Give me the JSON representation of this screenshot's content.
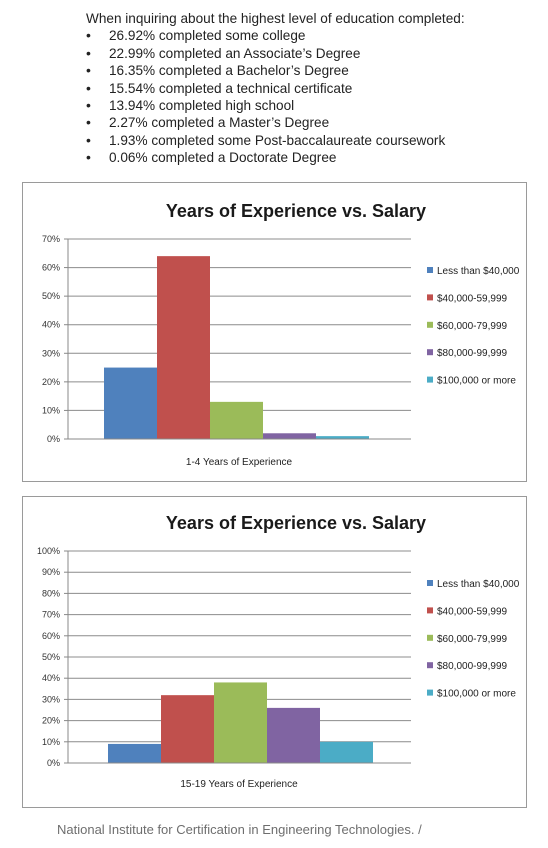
{
  "intro": {
    "heading": "When inquiring about the highest level of education completed:",
    "bullets": [
      "26.92% completed some college",
      "22.99% completed an Associate’s Degree",
      "16.35% completed a Bachelor’s Degree",
      "15.54% completed a technical certificate",
      "13.94% completed high school",
      "2.27% completed a Master’s Degree",
      "1.93% completed some Post-baccalaureate coursework",
      "0.06% completed a Doctorate Degree"
    ]
  },
  "chart_data": [
    {
      "type": "bar",
      "title": "Years of Experience vs. Salary",
      "categories": [
        "1-4  Years of Experience"
      ],
      "series": [
        {
          "name": "Less than $40,000",
          "color": "#4f81bd",
          "values": [
            25
          ]
        },
        {
          "name": "$40,000-59,999",
          "color": "#c0504d",
          "values": [
            64
          ]
        },
        {
          "name": "$60,000-79,999",
          "color": "#9bbb59",
          "values": [
            13
          ]
        },
        {
          "name": "$80,000-99,999",
          "color": "#8064a2",
          "values": [
            2
          ]
        },
        {
          "name": "$100,000 or more",
          "color": "#4bacc6",
          "values": [
            1
          ]
        }
      ],
      "ylim": [
        0,
        70
      ],
      "yticks": [
        "0%",
        "10%",
        "20%",
        "30%",
        "40%",
        "50%",
        "60%",
        "70%"
      ],
      "ytick_values": [
        0,
        10,
        20,
        30,
        40,
        50,
        60,
        70
      ],
      "grid": true,
      "legend": "right"
    },
    {
      "type": "bar",
      "title": "Years of Experience vs. Salary",
      "categories": [
        "15-19 Years of Experience"
      ],
      "series": [
        {
          "name": "Less than $40,000",
          "color": "#4f81bd",
          "values": [
            9
          ]
        },
        {
          "name": "$40,000-59,999",
          "color": "#c0504d",
          "values": [
            32
          ]
        },
        {
          "name": "$60,000-79,999",
          "color": "#9bbb59",
          "values": [
            38
          ]
        },
        {
          "name": "$80,000-99,999",
          "color": "#8064a2",
          "values": [
            26
          ]
        },
        {
          "name": "$100,000 or more",
          "color": "#4bacc6",
          "values": [
            10
          ]
        }
      ],
      "ylim": [
        0,
        100
      ],
      "yticks": [
        "0%",
        "10%",
        "20%",
        "30%",
        "40%",
        "50%",
        "60%",
        "70%",
        "80%",
        "90%",
        "100%"
      ],
      "ytick_values": [
        0,
        10,
        20,
        30,
        40,
        50,
        60,
        70,
        80,
        90,
        100
      ],
      "grid": true,
      "legend": "right"
    }
  ],
  "footer": {
    "text": "National Institute for Certification in Engineering Technologies. /"
  }
}
